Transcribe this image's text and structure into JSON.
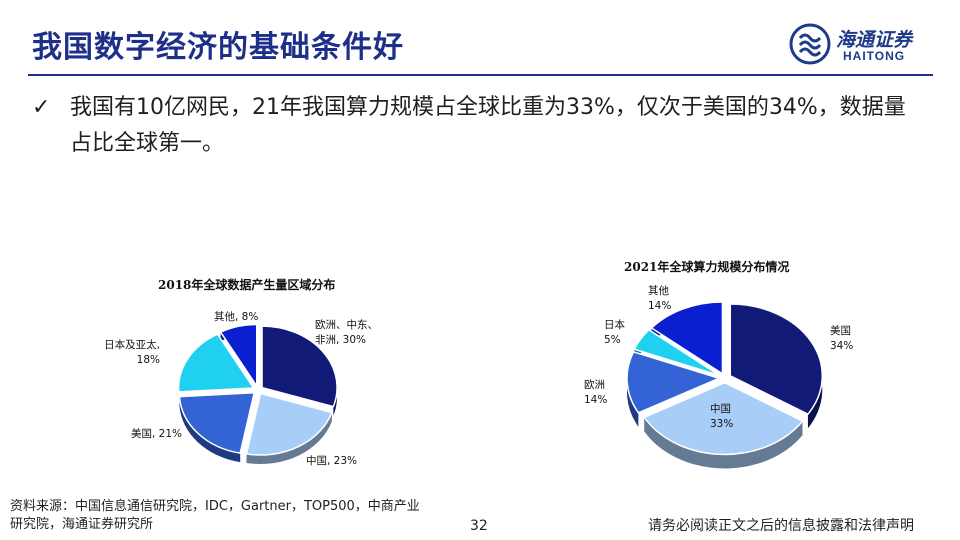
{
  "header": {
    "title": "我国数字经济的基础条件好",
    "logo_cn": "海通证券",
    "logo_en": "HAITONG"
  },
  "bullet": {
    "mark": "✓",
    "text": "我国有10亿网民，21年我国算力规模占全球比重为33%，仅次于美国的34%，数据量占比全球第一。"
  },
  "chart_data": [
    {
      "type": "pie",
      "title": "2018年全球数据产生量区域分布",
      "slices": [
        {
          "label": "欧洲、中东、非洲",
          "value": 30,
          "display": "欧洲、中东、\n非洲, 30%",
          "color": "#121a78"
        },
        {
          "label": "中国",
          "value": 23,
          "display": "中国, 23%",
          "color": "#a8cdf6"
        },
        {
          "label": "美国",
          "value": 21,
          "display": "美国, 21%",
          "color": "#3463d6"
        },
        {
          "label": "日本及亚太",
          "value": 18,
          "display": "日本及亚太,\n18%",
          "color": "#1fd0f0"
        },
        {
          "label": "其他",
          "value": 8,
          "display": "其他, 8%",
          "color": "#0a1fd0"
        }
      ]
    },
    {
      "type": "pie",
      "title": "2021年全球算力规模分布情况",
      "slices": [
        {
          "label": "美国",
          "value": 34,
          "display": "美国\n34%",
          "color": "#121a78"
        },
        {
          "label": "中国",
          "value": 33,
          "display": "中国\n33%",
          "color": "#a8cdf6"
        },
        {
          "label": "欧洲",
          "value": 14,
          "display": "欧洲\n14%",
          "color": "#3463d6"
        },
        {
          "label": "日本",
          "value": 5,
          "display": "日本\n5%",
          "color": "#1fd0f0"
        },
        {
          "label": "其他",
          "value": 14,
          "display": "其他\n14%",
          "color": "#0a1fd0"
        }
      ]
    }
  ],
  "footer": {
    "source": "资料来源：中国信息通信研究院，IDC，Gartner，TOP500，中商产业研究院，海通证券研究所",
    "page_number": "32",
    "disclaimer": "请务必阅读正文之后的信息披露和法律声明"
  }
}
